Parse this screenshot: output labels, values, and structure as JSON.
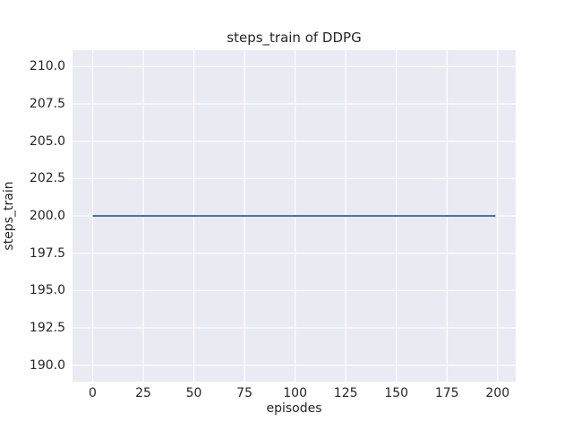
{
  "chart_data": {
    "type": "line",
    "title": "steps_train of DDPG",
    "xlabel": "episodes",
    "ylabel": "steps_train",
    "x_tick_labels": [
      "0",
      "25",
      "50",
      "75",
      "100",
      "125",
      "150",
      "175",
      "200"
    ],
    "y_tick_labels": [
      "190.0",
      "192.5",
      "195.0",
      "197.5",
      "200.0",
      "202.5",
      "205.0",
      "207.5",
      "210.0"
    ],
    "xlim": [
      -9.95,
      208.95
    ],
    "ylim": [
      188.9,
      211.1
    ],
    "grid": true,
    "legend": "none",
    "colors": {
      "plot_background": "#eaeaf2",
      "grid_line": "#ffffff",
      "text": "#262626",
      "line": "#4c72b0"
    },
    "series": [
      {
        "name": "DDPG steps_train",
        "color": "#4c72b0",
        "line_width": 2,
        "description": "constant value 200 for every episode from 0 to 199",
        "x": [
          0,
          199
        ],
        "y": [
          200,
          200
        ]
      }
    ]
  }
}
